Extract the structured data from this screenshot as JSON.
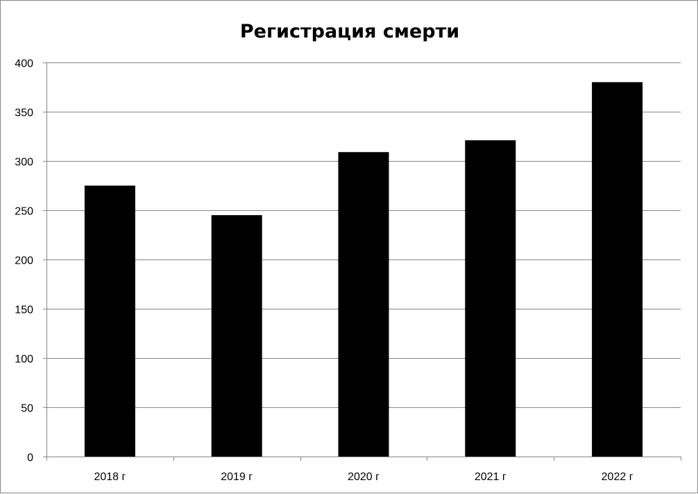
{
  "chart_data": {
    "type": "bar",
    "title": "Регистрация смерти",
    "categories": [
      "2018 г",
      "2019 г",
      "2020 г",
      "2021 г",
      "2022 г"
    ],
    "values": [
      275,
      245,
      309,
      321,
      380
    ],
    "ylim": [
      0,
      400
    ],
    "yticks": [
      "0",
      "50",
      "100",
      "150",
      "200",
      "250",
      "300",
      "350",
      "400"
    ],
    "grid": true,
    "legend": "none",
    "bar_color": "#000000",
    "grid_color": "#868686"
  }
}
